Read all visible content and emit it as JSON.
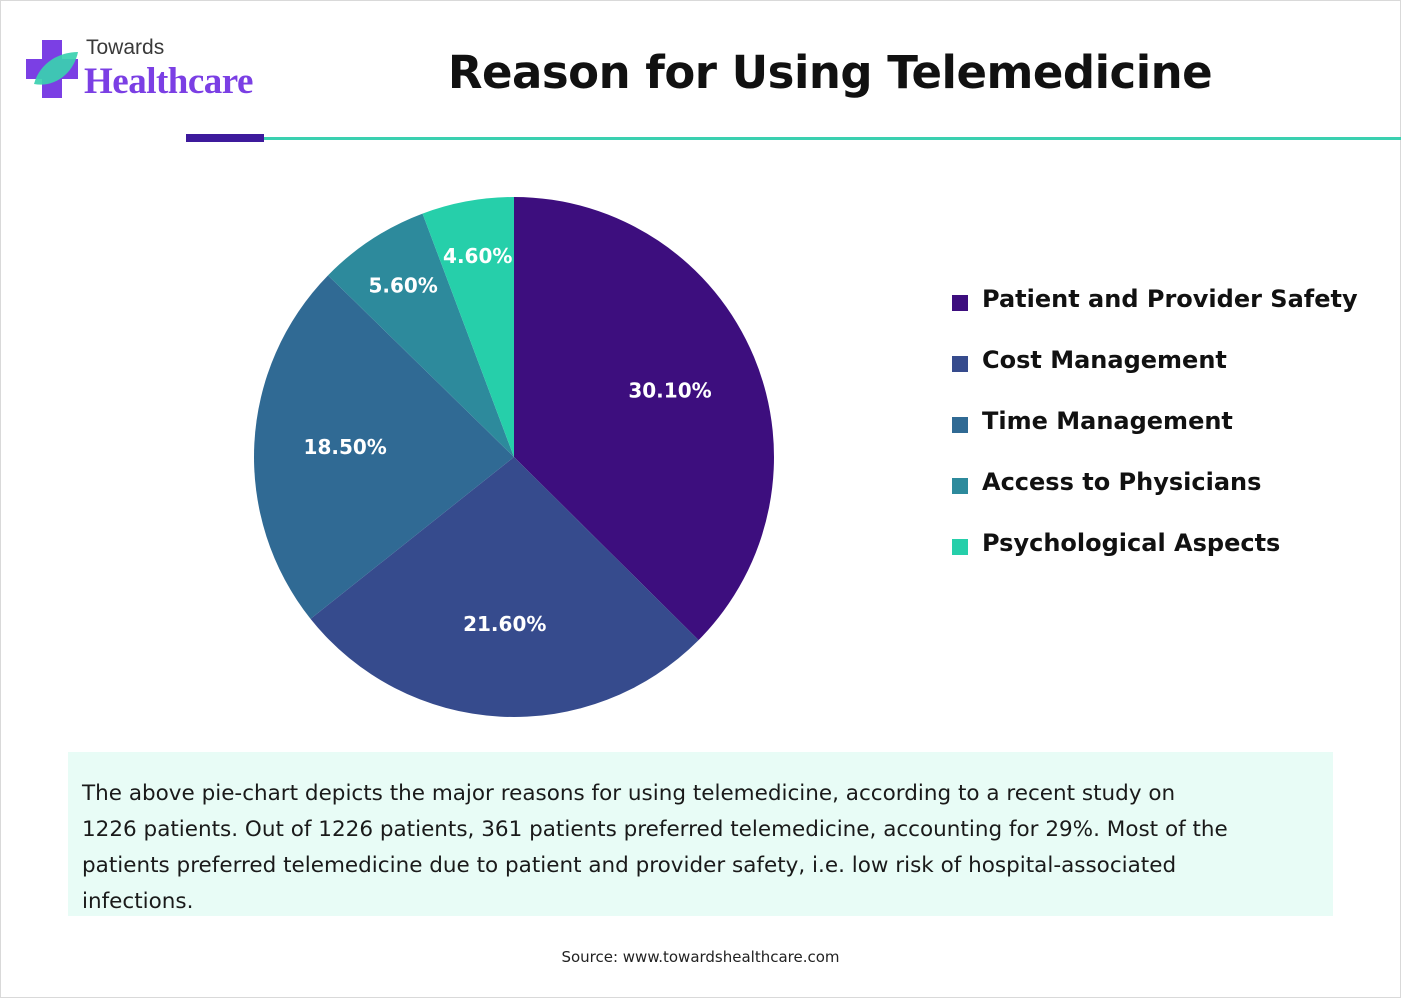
{
  "brand": {
    "small": "Towards",
    "big": "Healthcare"
  },
  "source": "Source: www.towardshealthcare.com",
  "note": "The above pie-chart depicts the major reasons for using telemedicine, according to a recent study on 1226 patients. Out of 1226 patients, 361 patients preferred telemedicine, accounting for 29%. Most of the patients preferred telemedicine due to patient and provider safety, i.e. low risk of hospital-associated infections.",
  "colors": {
    "brand_purple": "#7b3fe4",
    "brand_teal": "#3ad0b0",
    "accent": "#3d1a9c",
    "note_bg": "#e8fcf6"
  },
  "chart_data": {
    "type": "pie",
    "title": "Reason for Using Telemedicine",
    "categories": [
      "Patient and Provider Safety",
      "Cost Management",
      "Time Management",
      "Access to Physicians",
      "Psychological Aspects"
    ],
    "values": [
      30.1,
      21.6,
      18.5,
      5.6,
      4.6
    ],
    "labels": [
      "30.10%",
      "21.60%",
      "18.50%",
      "5.60%",
      "4.60%"
    ],
    "colors": [
      "#3d0e7e",
      "#364b8d",
      "#306a94",
      "#2d8a9c",
      "#26cfaa"
    ],
    "start_angle_deg": 0,
    "direction": "clockwise",
    "legend_position": "right"
  }
}
